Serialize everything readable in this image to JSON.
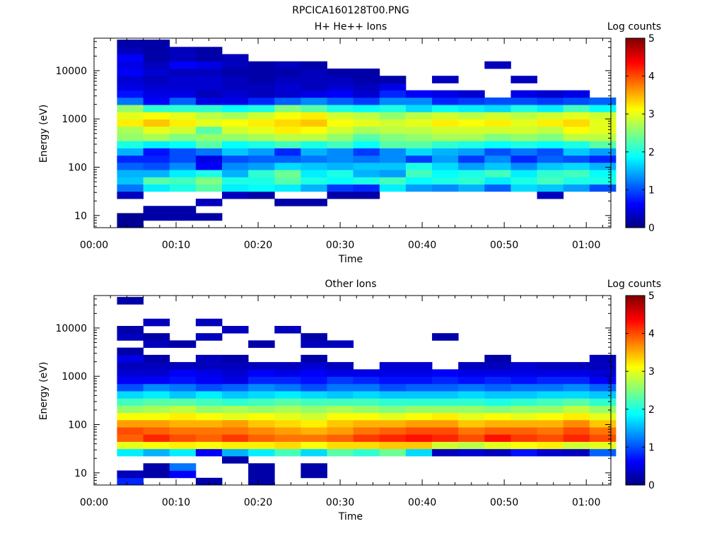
{
  "figure_title": "RPCICA160128T00.PNG",
  "colors": {
    "axis": "#000000",
    "colormap_stops": [
      "#00007f",
      "#0000ff",
      "#007fff",
      "#00ffff",
      "#7fff7f",
      "#ffff00",
      "#ff7f00",
      "#ff0000",
      "#7f0000"
    ]
  },
  "chart_data": [
    {
      "type": "heatmap",
      "title": "H+ He++ Ions",
      "xlabel": "Time",
      "ylabel": "Energy (eV)",
      "colorbar_label": "Log counts",
      "colorbar_ticks": [
        "0",
        "1",
        "2",
        "3",
        "4",
        "5"
      ],
      "clim": [
        0,
        5
      ],
      "ylog": true,
      "ylim": [
        5.6,
        47000
      ],
      "xlim": [
        0,
        63
      ],
      "xticks": [
        0,
        10,
        20,
        30,
        40,
        50,
        60
      ],
      "xtick_labels": [
        "00:00",
        "00:10",
        "00:20",
        "00:30",
        "00:40",
        "00:50",
        "01:00"
      ],
      "yticks": [
        10,
        100,
        1000,
        10000
      ],
      "ytick_labels": [
        "10",
        "100",
        "1000",
        "10000"
      ],
      "time_bins": [
        2.8,
        6.0,
        9.2,
        12.4,
        15.6,
        18.8,
        22.0,
        25.2,
        28.4,
        31.6,
        34.8,
        38.0,
        41.2,
        44.4,
        47.6,
        50.8,
        54.0,
        57.2,
        60.4
      ],
      "energy_bins_eV": [
        5.6,
        7.9,
        11.2,
        15.8,
        22.3,
        31.5,
        44.4,
        62.7,
        88.5,
        125,
        176,
        249,
        351,
        496,
        700,
        988,
        1395,
        1970,
        2780,
        3925,
        5540,
        7820,
        11040,
        15590,
        22000,
        31060,
        43850
      ],
      "values": [
        [
          0.1,
          0.1,
          null,
          null,
          0.3,
          1.2,
          1.6,
          1.5,
          1.1,
          0.8,
          1.5,
          2.0,
          2.6,
          2.7,
          3.2,
          3.0,
          2.6,
          1.2,
          0.7,
          0.5,
          0.4,
          0.6,
          0.5,
          0.6,
          0.3,
          0.2
        ],
        [
          null,
          0.2,
          0.2,
          null,
          null,
          1.8,
          2.3,
          1.5,
          1.0,
          0.8,
          0.7,
          1.8,
          2.7,
          3.0,
          3.4,
          3.1,
          2.1,
          0.6,
          0.5,
          0.4,
          0.3,
          0.4,
          0.3,
          0.2,
          0.2,
          0.2
        ],
        [
          null,
          0.2,
          0.2,
          null,
          null,
          2.0,
          2.2,
          1.8,
          1.3,
          1.0,
          1.0,
          1.9,
          2.5,
          2.9,
          3.2,
          3.0,
          2.1,
          1.1,
          0.5,
          0.4,
          0.4,
          0.3,
          0.6,
          0.3,
          0.3,
          null
        ],
        [
          null,
          0.2,
          null,
          0.3,
          null,
          2.3,
          2.5,
          2.0,
          0.6,
          0.5,
          1.2,
          2.3,
          2.6,
          2.3,
          3.0,
          2.8,
          2.1,
          0.5,
          0.3,
          0.4,
          0.4,
          0.3,
          0.5,
          0.2,
          0.2,
          null
        ],
        [
          null,
          null,
          null,
          null,
          0.3,
          1.8,
          2.0,
          1.5,
          1.3,
          1.0,
          1.6,
          1.9,
          2.6,
          2.9,
          3.1,
          2.7,
          1.9,
          0.5,
          0.4,
          0.3,
          0.3,
          0.2,
          0.3,
          0.3,
          null,
          null
        ],
        [
          null,
          null,
          null,
          null,
          0.2,
          1.9,
          2.0,
          2.1,
          1.4,
          1.1,
          1.4,
          2.0,
          2.7,
          3.0,
          3.2,
          2.9,
          2.0,
          0.8,
          0.3,
          0.3,
          0.2,
          0.2,
          0.2,
          null,
          null,
          null
        ],
        [
          null,
          null,
          null,
          0.2,
          null,
          1.8,
          2.3,
          2.4,
          1.7,
          1.1,
          0.8,
          2.2,
          2.8,
          3.2,
          3.3,
          3.1,
          2.5,
          1.1,
          0.4,
          0.4,
          0.3,
          0.2,
          0.3,
          null,
          null,
          null
        ],
        [
          null,
          null,
          null,
          0.2,
          null,
          1.5,
          2.0,
          1.8,
          1.6,
          1.2,
          1.5,
          2.0,
          2.8,
          3.1,
          3.4,
          3.2,
          2.3,
          1.3,
          0.5,
          0.3,
          0.3,
          0.3,
          0.2,
          null,
          null,
          null
        ],
        [
          null,
          null,
          null,
          null,
          0.2,
          0.9,
          1.9,
          2.0,
          1.5,
          1.3,
          1.3,
          2.2,
          2.6,
          2.9,
          3.1,
          2.9,
          2.0,
          1.1,
          0.6,
          0.4,
          0.3,
          0.2,
          null,
          null,
          null,
          null
        ],
        [
          null,
          null,
          null,
          null,
          0.2,
          0.8,
          2.0,
          1.5,
          1.6,
          1.2,
          0.9,
          1.9,
          2.3,
          2.7,
          3.0,
          2.8,
          1.9,
          0.9,
          0.4,
          0.3,
          0.2,
          0.2,
          null,
          null,
          null,
          null
        ],
        [
          null,
          null,
          null,
          null,
          null,
          1.8,
          2.2,
          1.4,
          1.6,
          1.3,
          1.3,
          2.3,
          2.5,
          2.8,
          2.9,
          2.6,
          2.0,
          1.3,
          0.8,
          0.5,
          0.2,
          null,
          null,
          null,
          null,
          null
        ],
        [
          null,
          null,
          null,
          null,
          null,
          1.4,
          1.9,
          2.2,
          2.0,
          0.9,
          1.7,
          2.3,
          2.6,
          2.8,
          3.0,
          2.8,
          1.7,
          1.3,
          0.6,
          null,
          null,
          null,
          null,
          null,
          null,
          null
        ],
        [
          null,
          null,
          null,
          null,
          null,
          1.3,
          2.0,
          1.9,
          1.7,
          1.4,
          1.5,
          2.1,
          2.7,
          2.9,
          3.2,
          2.9,
          1.9,
          0.8,
          0.5,
          null,
          0.3,
          null,
          null,
          null,
          null,
          null
        ],
        [
          null,
          null,
          null,
          null,
          null,
          1.5,
          2.1,
          2.0,
          1.4,
          0.9,
          1.4,
          2.0,
          2.7,
          2.9,
          3.1,
          2.8,
          1.8,
          0.9,
          0.4,
          null,
          null,
          null,
          null,
          null,
          null,
          null
        ],
        [
          null,
          null,
          null,
          null,
          null,
          1.1,
          1.8,
          2.2,
          1.6,
          1.3,
          1.0,
          1.9,
          2.5,
          2.9,
          3.2,
          2.9,
          1.7,
          1.0,
          null,
          null,
          null,
          null,
          0.3,
          null,
          null,
          null
        ],
        [
          null,
          null,
          null,
          null,
          null,
          1.7,
          2.0,
          1.8,
          1.3,
          0.8,
          1.2,
          2.0,
          2.6,
          2.9,
          3.0,
          2.8,
          2.0,
          1.0,
          0.5,
          null,
          0.3,
          null,
          null,
          null,
          null,
          null
        ],
        [
          null,
          null,
          null,
          null,
          0.3,
          1.6,
          2.2,
          2.1,
          1.6,
          1.1,
          1.0,
          1.9,
          2.5,
          2.8,
          3.2,
          2.9,
          1.8,
          0.9,
          0.4,
          null,
          null,
          null,
          null,
          null,
          null,
          null
        ],
        [
          null,
          null,
          null,
          null,
          null,
          1.4,
          2.0,
          2.2,
          1.7,
          1.0,
          1.6,
          2.0,
          2.8,
          3.1,
          3.3,
          3.0,
          2.2,
          1.0,
          0.5,
          null,
          null,
          null,
          null,
          null,
          null,
          null
        ],
        [
          null,
          null,
          null,
          null,
          null,
          1.0,
          2.0,
          1.9,
          1.5,
          0.8,
          1.4,
          2.3,
          2.8,
          3.0,
          3.0,
          2.9,
          1.9,
          1.1,
          null,
          null,
          null,
          null,
          null,
          null,
          null,
          null
        ]
      ]
    },
    {
      "type": "heatmap",
      "title": "Other Ions",
      "xlabel": "Time",
      "ylabel": "Energy (eV)",
      "colorbar_label": "Log counts",
      "colorbar_ticks": [
        "0",
        "1",
        "2",
        "3",
        "4",
        "5"
      ],
      "clim": [
        0,
        5
      ],
      "ylog": true,
      "ylim": [
        5.6,
        47000
      ],
      "xlim": [
        0,
        63
      ],
      "xticks": [
        0,
        10,
        20,
        30,
        40,
        50,
        60
      ],
      "xtick_labels": [
        "00:00",
        "00:10",
        "00:20",
        "00:30",
        "00:40",
        "00:50",
        "01:00"
      ],
      "yticks": [
        10,
        100,
        1000,
        10000
      ],
      "ytick_labels": [
        "10",
        "100",
        "1000",
        "10000"
      ],
      "time_bins": [
        2.8,
        6.0,
        9.2,
        12.4,
        15.6,
        18.8,
        22.0,
        25.2,
        28.4,
        31.6,
        34.8,
        38.0,
        41.2,
        44.4,
        47.6,
        50.8,
        54.0,
        57.2,
        60.4
      ],
      "energy_bins_eV": [
        5.6,
        7.9,
        11.2,
        15.8,
        22.3,
        31.5,
        44.4,
        62.7,
        88.5,
        125,
        176,
        249,
        351,
        496,
        700,
        988,
        1395,
        1970,
        2780,
        3925,
        5540,
        7820,
        11040,
        15590,
        22000,
        31060,
        43850
      ],
      "values": [
        [
          0.8,
          0.3,
          null,
          null,
          1.8,
          3.0,
          3.9,
          4.0,
          3.6,
          3.1,
          2.6,
          2.2,
          1.7,
          1.0,
          0.6,
          0.4,
          0.3,
          0.5,
          0.2,
          null,
          0.3,
          0.2,
          null,
          null,
          null,
          0.2
        ],
        [
          null,
          0.2,
          0.2,
          null,
          1.5,
          3.1,
          4.2,
          3.9,
          3.6,
          3.1,
          2.7,
          2.3,
          1.8,
          1.3,
          0.6,
          0.4,
          0.3,
          0.2,
          null,
          0.3,
          0.2,
          null,
          0.3,
          null,
          null,
          null
        ],
        [
          null,
          0.6,
          1.2,
          null,
          1.8,
          3.2,
          4.0,
          3.8,
          3.5,
          3.2,
          2.8,
          2.3,
          1.6,
          1.2,
          0.7,
          0.6,
          0.3,
          null,
          null,
          0.2,
          null,
          null,
          null,
          null,
          null,
          null
        ],
        [
          0.2,
          null,
          null,
          null,
          0.6,
          3.1,
          3.9,
          3.8,
          3.5,
          3.1,
          2.6,
          2.2,
          1.8,
          1.0,
          0.6,
          0.5,
          0.3,
          0.3,
          null,
          null,
          0.3,
          null,
          0.3,
          null,
          null,
          null
        ],
        [
          null,
          null,
          null,
          0.2,
          1.5,
          3.2,
          4.1,
          3.8,
          3.6,
          3.0,
          2.7,
          2.1,
          1.6,
          1.1,
          0.5,
          0.4,
          0.3,
          0.2,
          null,
          null,
          null,
          0.3,
          null,
          null,
          null,
          null
        ],
        [
          0.2,
          0.2,
          0.2,
          null,
          1.8,
          3.2,
          3.9,
          3.7,
          3.4,
          3.1,
          2.6,
          2.2,
          1.7,
          1.3,
          0.8,
          0.6,
          0.3,
          null,
          null,
          0.2,
          null,
          null,
          null,
          null,
          null,
          null
        ],
        [
          null,
          null,
          null,
          null,
          2.2,
          3.3,
          3.8,
          3.6,
          3.3,
          3.0,
          2.7,
          2.3,
          1.8,
          1.2,
          0.8,
          0.5,
          0.3,
          null,
          null,
          null,
          null,
          0.3,
          null,
          null,
          null,
          null
        ],
        [
          null,
          0.2,
          0.2,
          null,
          1.7,
          3.1,
          3.8,
          3.5,
          3.2,
          2.9,
          2.6,
          2.2,
          1.7,
          1.0,
          0.7,
          0.6,
          0.4,
          0.2,
          null,
          0.3,
          0.2,
          null,
          null,
          null,
          null,
          null
        ],
        [
          null,
          null,
          null,
          null,
          2.3,
          3.3,
          3.9,
          3.6,
          3.4,
          3.1,
          2.7,
          2.2,
          1.6,
          1.2,
          0.9,
          0.5,
          0.3,
          null,
          null,
          0.3,
          null,
          null,
          null,
          null,
          null,
          null
        ],
        [
          null,
          null,
          null,
          null,
          2.1,
          3.3,
          4.1,
          3.8,
          3.5,
          3.1,
          2.6,
          2.2,
          1.7,
          1.2,
          0.8,
          0.5,
          null,
          null,
          null,
          null,
          null,
          null,
          null,
          null,
          null,
          null
        ],
        [
          null,
          null,
          null,
          null,
          2.4,
          3.4,
          4.2,
          3.9,
          3.5,
          3.0,
          2.5,
          2.1,
          1.6,
          1.0,
          0.7,
          0.5,
          0.4,
          null,
          null,
          null,
          null,
          null,
          null,
          null,
          null,
          null
        ],
        [
          null,
          null,
          null,
          null,
          1.7,
          3.4,
          4.3,
          4.0,
          3.6,
          3.1,
          2.6,
          2.1,
          1.6,
          1.1,
          0.7,
          0.5,
          0.4,
          null,
          null,
          null,
          null,
          null,
          null,
          null,
          null,
          null
        ],
        [
          null,
          null,
          null,
          null,
          0.3,
          2.9,
          4.2,
          4.0,
          3.6,
          3.2,
          2.6,
          2.1,
          1.6,
          1.1,
          0.8,
          0.6,
          null,
          null,
          null,
          null,
          0.2,
          null,
          null,
          null,
          null,
          null
        ],
        [
          null,
          null,
          null,
          null,
          0.4,
          2.8,
          4.0,
          3.8,
          3.4,
          3.0,
          2.6,
          2.1,
          1.7,
          1.2,
          0.7,
          0.5,
          0.3,
          null,
          null,
          null,
          null,
          null,
          null,
          null,
          null,
          null
        ],
        [
          null,
          null,
          null,
          null,
          0.3,
          3.0,
          4.3,
          3.9,
          3.5,
          3.1,
          2.5,
          2.0,
          1.6,
          1.1,
          0.8,
          0.5,
          0.3,
          0.2,
          null,
          null,
          null,
          null,
          null,
          null,
          null,
          null
        ],
        [
          null,
          null,
          null,
          null,
          0.7,
          3.1,
          4.1,
          3.9,
          3.5,
          3.0,
          2.6,
          2.1,
          1.6,
          1.2,
          0.7,
          0.5,
          0.4,
          null,
          null,
          null,
          null,
          null,
          null,
          null,
          null,
          null
        ],
        [
          null,
          null,
          null,
          null,
          0.4,
          3.2,
          4.0,
          3.8,
          3.5,
          3.1,
          2.6,
          2.2,
          1.7,
          1.2,
          0.8,
          0.5,
          0.3,
          null,
          null,
          null,
          null,
          null,
          null,
          null,
          null,
          null
        ],
        [
          null,
          null,
          null,
          null,
          0.3,
          2.9,
          4.2,
          4.0,
          3.7,
          3.2,
          2.8,
          2.3,
          1.7,
          1.3,
          0.8,
          0.5,
          0.3,
          null,
          null,
          null,
          null,
          null,
          null,
          null,
          null,
          null
        ],
        [
          null,
          null,
          null,
          null,
          1.1,
          3.0,
          4.0,
          3.8,
          3.4,
          3.0,
          2.6,
          2.1,
          1.6,
          1.1,
          0.6,
          0.4,
          0.3,
          0.3,
          null,
          null,
          null,
          null,
          null,
          null,
          null,
          null
        ]
      ]
    }
  ]
}
